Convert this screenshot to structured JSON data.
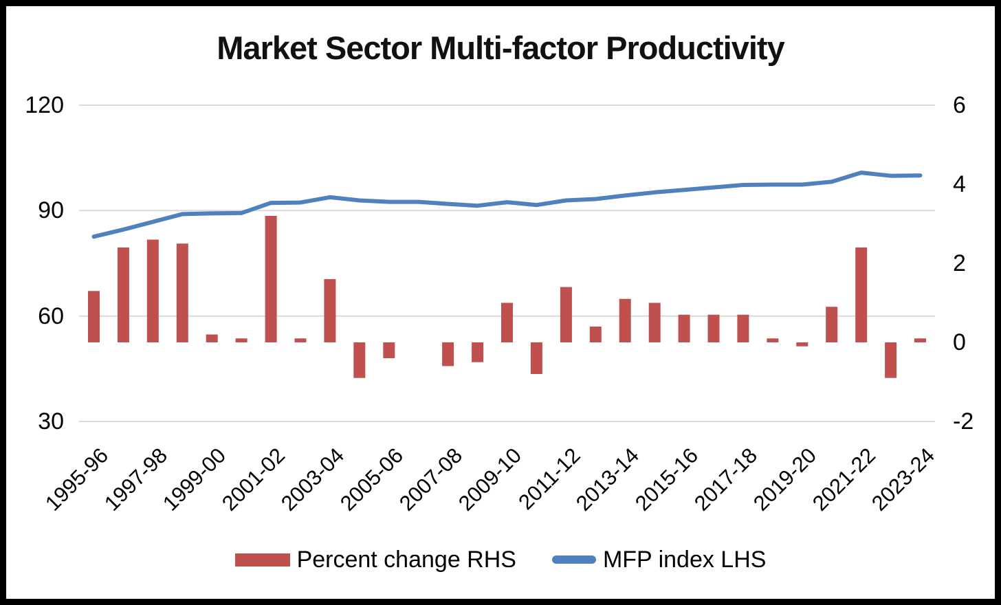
{
  "chart_data": {
    "type": "combo",
    "title": "Market Sector Multi-factor Productivity",
    "categories": [
      "1995-96",
      "1996-97",
      "1997-98",
      "1998-99",
      "1999-00",
      "2000-01",
      "2001-02",
      "2002-03",
      "2003-04",
      "2004-05",
      "2005-06",
      "2006-07",
      "2007-08",
      "2008-09",
      "2009-10",
      "2010-11",
      "2011-12",
      "2012-13",
      "2013-14",
      "2014-15",
      "2015-16",
      "2016-17",
      "2017-18",
      "2018-19",
      "2019-20",
      "2020-21",
      "2021-22",
      "2022-23",
      "2023-24"
    ],
    "x_tick_label_every": 2,
    "series": [
      {
        "name": "Percent change RHS",
        "type": "bar",
        "axis": "right",
        "color": "#C0504D",
        "values": [
          1.3,
          2.4,
          2.6,
          2.5,
          0.2,
          0.1,
          3.2,
          0.1,
          1.6,
          -0.9,
          -0.4,
          0.0,
          -0.6,
          -0.5,
          1.0,
          -0.8,
          1.4,
          0.4,
          1.1,
          1.0,
          0.7,
          0.7,
          0.7,
          0.1,
          -0.1,
          0.9,
          2.4,
          -0.9,
          0.1
        ]
      },
      {
        "name": "MFP index LHS",
        "type": "line",
        "axis": "left",
        "color": "#4F81BD",
        "values": [
          82.6,
          84.6,
          86.8,
          89.0,
          89.2,
          89.3,
          92.2,
          92.3,
          93.8,
          92.9,
          92.5,
          92.5,
          91.9,
          91.4,
          92.4,
          91.6,
          92.9,
          93.3,
          94.3,
          95.2,
          95.9,
          96.6,
          97.3,
          97.4,
          97.4,
          98.2,
          100.8,
          99.9,
          100.0
        ]
      }
    ],
    "left_axis": {
      "ticks": [
        120,
        90,
        60,
        30
      ],
      "min": 30,
      "max": 120
    },
    "right_axis": {
      "ticks": [
        6,
        4,
        2,
        0,
        -2
      ],
      "min": -2,
      "max": 6
    },
    "gridlines": "horizontal",
    "gridline_color": "#D9D9D9",
    "legend_position": "bottom",
    "background": "#FFFFFF",
    "frame_color": "#000000"
  }
}
